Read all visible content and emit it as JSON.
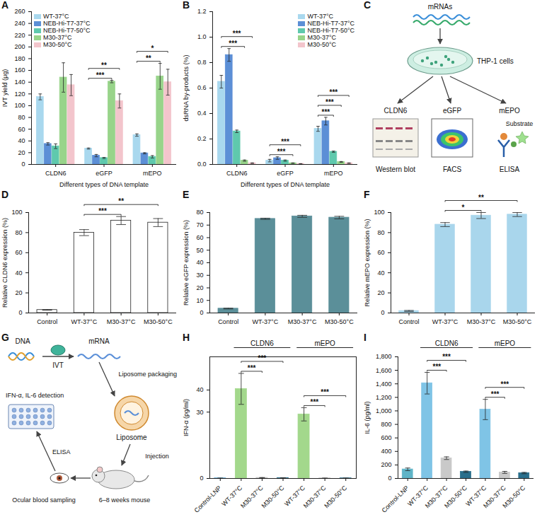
{
  "chart_data": [
    {
      "panel": "A",
      "type": "bar",
      "categories": [
        "CLDN6",
        "eGFP",
        "mEPO"
      ],
      "xlabel": "Different types of DNA template",
      "ylabel": "IVT yield (μg)",
      "ylim": [
        0,
        260
      ],
      "yticks": [
        0,
        20,
        40,
        60,
        80,
        100,
        120,
        140,
        160,
        180,
        200,
        220,
        240,
        260
      ],
      "legend": "top-left",
      "series": [
        {
          "name": "WT-37°C",
          "color": "#a9d8ee",
          "values": [
            115,
            27,
            50
          ],
          "errors": [
            5,
            1,
            2
          ]
        },
        {
          "name": "NEB-Hi-T7-37°C",
          "color": "#5c8fd6",
          "values": [
            35,
            15,
            19
          ],
          "errors": [
            2,
            2,
            1
          ]
        },
        {
          "name": "NEB-Hi-T7-50°C",
          "color": "#5fc9ad",
          "values": [
            31,
            11,
            13
          ],
          "errors": [
            4,
            1,
            2
          ]
        },
        {
          "name": "M30-37°C",
          "color": "#98d48a",
          "values": [
            148,
            141,
            150
          ],
          "errors": [
            25,
            2,
            22
          ]
        },
        {
          "name": "M30-50°C",
          "color": "#f3c5cc",
          "values": [
            135,
            108,
            140
          ],
          "errors": [
            18,
            12,
            22
          ]
        }
      ],
      "annotations": [
        {
          "category": "eGFP",
          "from": "WT-37°C",
          "to": "M30-37°C",
          "text": "***"
        },
        {
          "category": "eGFP",
          "from": "WT-37°C",
          "to": "M30-50°C",
          "text": "**"
        },
        {
          "category": "mEPO",
          "from": "WT-37°C",
          "to": "M30-37°C",
          "text": "**"
        },
        {
          "category": "mEPO",
          "from": "WT-37°C",
          "to": "M30-50°C",
          "text": "*"
        }
      ]
    },
    {
      "panel": "B",
      "type": "bar",
      "categories": [
        "CLDN6",
        "eGFP",
        "mEPO"
      ],
      "xlabel": "Different types of DNA template",
      "ylabel": "dsRNA by-products (%)",
      "ylim": [
        0,
        1.2
      ],
      "yticks": [
        {
          "value": 0,
          "label": "0.0"
        },
        0.2,
        0.4,
        0.6,
        0.8,
        {
          "value": 1,
          "label": "1.0"
        },
        1.2
      ],
      "legend": "top-right",
      "series": [
        {
          "name": "WT-37°C",
          "color": "#a9d8ee",
          "values": [
            0.65,
            0.03,
            0.28
          ],
          "errors": [
            0.05,
            0.01,
            0.02
          ]
        },
        {
          "name": "NEB-Hi-T7-37°C",
          "color": "#5c8fd6",
          "values": [
            0.86,
            0.05,
            0.34
          ],
          "errors": [
            0.05,
            0.01,
            0.03
          ]
        },
        {
          "name": "NEB-Hi-T7-50°C",
          "color": "#5fc9ad",
          "values": [
            0.26,
            0.03,
            0.1
          ],
          "errors": [
            0.01,
            0.005,
            0.005
          ]
        },
        {
          "name": "M30-37°C",
          "color": "#98d48a",
          "values": [
            0.03,
            0.01,
            0.02
          ],
          "errors": [
            0.005,
            0.002,
            0.003
          ]
        },
        {
          "name": "M30-50°C",
          "color": "#f3c5cc",
          "values": [
            0.01,
            0.005,
            0.01
          ],
          "errors": [
            0.002,
            0.001,
            0.002
          ]
        }
      ],
      "annotations": [
        {
          "category": "CLDN6",
          "from": "WT-37°C",
          "to": "M30-37°C",
          "text": "***"
        },
        {
          "category": "CLDN6",
          "from": "WT-37°C",
          "to": "M30-50°C",
          "text": "***"
        },
        {
          "category": "eGFP",
          "from": "WT-37°C",
          "to": "M30-37°C",
          "text": "***"
        },
        {
          "category": "eGFP",
          "from": "WT-37°C",
          "to": "M30-50°C",
          "text": "***"
        },
        {
          "category": "mEPO",
          "from": "WT-37°C",
          "to": "NEB-Hi-T7-50°C",
          "text": "***"
        },
        {
          "category": "mEPO",
          "from": "WT-37°C",
          "to": "M30-37°C",
          "text": "***"
        },
        {
          "category": "mEPO",
          "from": "WT-37°C",
          "to": "M30-50°C",
          "text": "***"
        }
      ]
    },
    {
      "panel": "D",
      "type": "bar",
      "categories": [
        "Control",
        "WT-37°C",
        "M30-37°C",
        "M30-50°C"
      ],
      "ylabel": "Relative CLDN6 expression (%)",
      "ylim": [
        0,
        100
      ],
      "yticks": [
        0,
        20,
        40,
        60,
        80,
        100
      ],
      "color": "#ffffff",
      "values": [
        3,
        80,
        92,
        90
      ],
      "errors": [
        0.3,
        3,
        4,
        4
      ],
      "annotations": [
        {
          "from": "WT-37°C",
          "to": "M30-37°C",
          "text": "***"
        },
        {
          "from": "WT-37°C",
          "to": "M30-50°C",
          "text": "**"
        }
      ]
    },
    {
      "panel": "E",
      "type": "bar",
      "categories": [
        "Control",
        "WT-37°C",
        "M30-37°C",
        "M30-50°C"
      ],
      "ylabel": "Relative eGFP expression (%)",
      "ylim": [
        0,
        80
      ],
      "yticks": [
        0,
        10,
        20,
        30,
        40,
        50,
        60,
        70,
        80
      ],
      "color": "#5b8f99",
      "values": [
        3.5,
        75,
        77,
        76
      ],
      "errors": [
        0.3,
        0.5,
        0.8,
        1
      ]
    },
    {
      "panel": "F",
      "type": "bar",
      "categories": [
        "Control",
        "WT-37°C",
        "M30-37°C",
        "M30-50°C"
      ],
      "ylabel": "Relative mEPO expression (%)",
      "ylim": [
        0,
        100
      ],
      "yticks": [
        0,
        20,
        40,
        60,
        80,
        100
      ],
      "color": "#a9d6ec",
      "values": [
        2,
        88,
        97,
        98
      ],
      "errors": [
        0.5,
        2,
        3,
        2
      ],
      "annotations": [
        {
          "from": "WT-37°C",
          "to": "M30-37°C",
          "text": "*"
        },
        {
          "from": "WT-37°C",
          "to": "M30-50°C",
          "text": "**"
        }
      ]
    },
    {
      "panel": "H",
      "type": "bar",
      "categories": [
        "Control-LNP",
        "WT-37°C",
        "M30-37°C",
        "M30-50°C",
        "WT-37°C",
        "M30-37°C",
        "M30-50°C"
      ],
      "category_groups": [
        null,
        "CLDN6",
        "CLDN6",
        "CLDN6",
        "mEPO",
        "mEPO",
        "mEPO"
      ],
      "ylabel": "IFN-α (pg/ml)",
      "ylim": [
        0,
        55
      ],
      "yticks": [
        0,
        30,
        40
      ],
      "colors": [
        "#5aa9d6",
        "#a3d88c",
        "#c9c9c9",
        "#2a6f8c",
        "#a3d88c",
        "#c9c9c9",
        "#2a6f8c"
      ],
      "values": [
        0.1,
        40.5,
        0.3,
        0.2,
        29,
        0.1,
        0.1
      ],
      "errors": [
        0.05,
        7,
        0.1,
        0.1,
        3,
        0.05,
        0.05
      ],
      "annotations": [
        {
          "group": "CLDN6",
          "from": "WT-37°C",
          "to": "M30-37°C",
          "text": "***"
        },
        {
          "group": "CLDN6",
          "from": "WT-37°C",
          "to": "M30-50°C",
          "text": "***"
        },
        {
          "group": "mEPO",
          "from": "WT-37°C",
          "to": "M30-37°C",
          "text": "***"
        },
        {
          "group": "mEPO",
          "from": "WT-37°C",
          "to": "M30-50°C",
          "text": "***"
        }
      ]
    },
    {
      "panel": "I",
      "type": "bar",
      "categories": [
        "Control-LNP",
        "WT-37°C",
        "M30-37°C",
        "M30-50°C",
        "WT-37°C",
        "M30-37°C",
        "M30-50°C"
      ],
      "category_groups": [
        null,
        "CLDN6",
        "CLDN6",
        "CLDN6",
        "mEPO",
        "mEPO",
        "mEPO"
      ],
      "ylabel": "IL-6 (pg/ml)",
      "ylim": [
        0,
        1800
      ],
      "yticks": [
        0,
        200,
        400,
        600,
        800,
        {
          "value": 1000,
          "label": "1,000"
        },
        {
          "value": 1200,
          "label": "1,200"
        },
        {
          "value": 1400,
          "label": "1,400"
        },
        {
          "value": 1600,
          "label": "1,600"
        },
        {
          "value": 1800,
          "label": "1,800"
        }
      ],
      "colors": [
        "#5fb4c7",
        "#7fc4e6",
        "#c9c9c9",
        "#2a6f8c",
        "#7fc4e6",
        "#c9c9c9",
        "#2a6f8c"
      ],
      "values": [
        135,
        1410,
        300,
        100,
        1020,
        90,
        80
      ],
      "errors": [
        20,
        160,
        20,
        10,
        150,
        15,
        10
      ],
      "annotations": [
        {
          "group": "CLDN6",
          "from": "WT-37°C",
          "to": "M30-37°C",
          "text": "***"
        },
        {
          "group": "CLDN6",
          "from": "WT-37°C",
          "to": "M30-50°C",
          "text": "***"
        },
        {
          "group": "mEPO",
          "from": "WT-37°C",
          "to": "M30-37°C",
          "text": "***"
        },
        {
          "group": "mEPO",
          "from": "WT-37°C",
          "to": "M30-50°C",
          "text": "***"
        }
      ]
    }
  ],
  "diagrams": [
    {
      "panel": "C",
      "input": "mRNAs",
      "cells": "THP-1 cells",
      "assays": [
        {
          "target": "CLDN6",
          "method": "Western blot"
        },
        {
          "target": "eGFP",
          "method": "FACS"
        },
        {
          "target": "mEPO",
          "method": "ELISA",
          "reagent": "Substrate"
        }
      ]
    },
    {
      "panel": "G",
      "template": "DNA",
      "transcription": "IVT",
      "product": "mRNA",
      "packaging": "Liposome packaging",
      "carrier": "Liposome",
      "delivery": "Injection",
      "animal": "6–8 weeks mouse",
      "sampling": "Ocular blood sampling",
      "assay": "ELISA",
      "readout": "IFN-α, IL-6 detection"
    }
  ]
}
